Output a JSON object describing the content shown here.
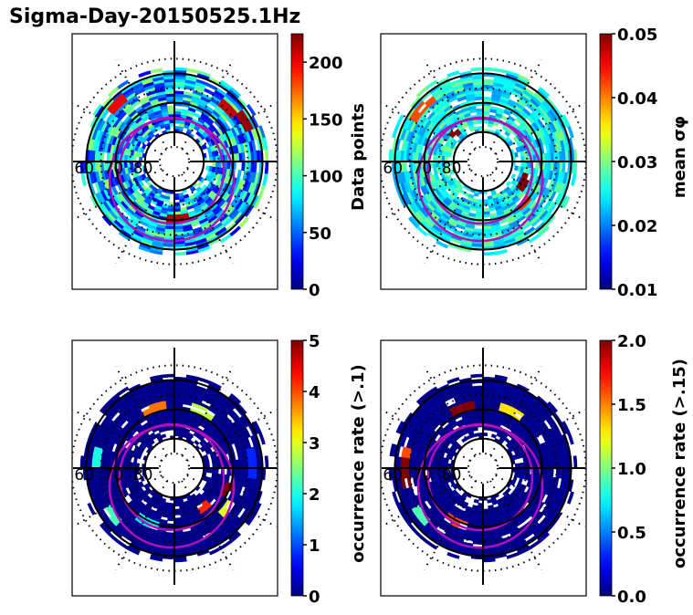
{
  "figure": {
    "title": "Sigma-Day-20150525.1Hz"
  },
  "chart_data": [
    {
      "type": "heatmap",
      "projection": "polar",
      "panel": "top-left",
      "colorbar": {
        "label": "Data points",
        "range": [
          0,
          225
        ],
        "ticks": [
          "0",
          "50",
          "100",
          "150",
          "200"
        ],
        "tick_values": [
          0,
          50,
          100,
          150,
          200
        ],
        "colormap": "jet"
      },
      "radial_labels": [
        "60",
        "70",
        "80"
      ],
      "radial_values": [
        60,
        70,
        80
      ],
      "dominant_range": [
        20,
        120
      ],
      "hotspots": [
        {
          "angle_deg": 130,
          "lat": 62,
          "value": 200
        },
        {
          "angle_deg": 40,
          "lat": 64,
          "value": 210
        },
        {
          "angle_deg": 25,
          "lat": 62,
          "value": 220
        },
        {
          "angle_deg": 270,
          "lat": 70,
          "value": 215
        }
      ]
    },
    {
      "type": "heatmap",
      "projection": "polar",
      "panel": "top-right",
      "colorbar": {
        "label": "mean σφ",
        "range": [
          0.01,
          0.05
        ],
        "ticks": [
          "0.01",
          "0.02",
          "0.03",
          "0.04",
          "0.05"
        ],
        "tick_values": [
          0.01,
          0.02,
          0.03,
          0.04,
          0.05
        ],
        "colormap": "jet"
      },
      "radial_labels": [
        "60",
        "70",
        "80"
      ],
      "radial_values": [
        60,
        70,
        80
      ],
      "dominant_range": [
        0.02,
        0.03
      ],
      "hotspots": [
        {
          "angle_deg": 135,
          "lat": 62,
          "value": 0.042
        },
        {
          "angle_deg": 130,
          "lat": 76,
          "value": 0.05
        },
        {
          "angle_deg": 330,
          "lat": 74,
          "value": 0.05
        },
        {
          "angle_deg": 310,
          "lat": 70,
          "value": 0.043
        }
      ]
    },
    {
      "type": "heatmap",
      "projection": "polar",
      "panel": "bottom-left",
      "colorbar": {
        "label": "occurrence rate (>.1)",
        "range": [
          0,
          5
        ],
        "ticks": [
          "0",
          "1",
          "2",
          "3",
          "4",
          "5"
        ],
        "tick_values": [
          0,
          1,
          2,
          3,
          4,
          5
        ],
        "colormap": "jet"
      },
      "radial_labels": [
        "60",
        "70",
        "80"
      ],
      "radial_values": [
        60,
        70,
        80
      ],
      "dominant_range": [
        0,
        0.2
      ],
      "hotspots": [
        {
          "angle_deg": 105,
          "lat": 68,
          "value": 3.8
        },
        {
          "angle_deg": 60,
          "lat": 68,
          "value": 2.8
        },
        {
          "angle_deg": 170,
          "lat": 63,
          "value": 2.0
        },
        {
          "angle_deg": 215,
          "lat": 63,
          "value": 2.2
        },
        {
          "angle_deg": 240,
          "lat": 69,
          "value": 1.8
        },
        {
          "angle_deg": 335,
          "lat": 70,
          "value": 5.0
        },
        {
          "angle_deg": 320,
          "lat": 67,
          "value": 3.0
        },
        {
          "angle_deg": 305,
          "lat": 73,
          "value": 4.2
        },
        {
          "angle_deg": 0,
          "lat": 63,
          "value": 0.8
        }
      ]
    },
    {
      "type": "heatmap",
      "projection": "polar",
      "panel": "bottom-right",
      "colorbar": {
        "label": "occurrence rate (>.15)",
        "range": [
          0,
          2
        ],
        "ticks": [
          "0.0",
          "0.5",
          "1.0",
          "1.5",
          "2.0"
        ],
        "tick_values": [
          0,
          0.5,
          1.0,
          1.5,
          2.0
        ],
        "colormap": "jet"
      },
      "radial_labels": [
        "60",
        "70",
        "80"
      ],
      "radial_values": [
        60,
        70,
        80
      ],
      "dominant_range": [
        0,
        0.1
      ],
      "hotspots": [
        {
          "angle_deg": 105,
          "lat": 68,
          "value": 2.0
        },
        {
          "angle_deg": 60,
          "lat": 68,
          "value": 1.3
        },
        {
          "angle_deg": 170,
          "lat": 63,
          "value": 1.6
        },
        {
          "angle_deg": 180,
          "lat": 63,
          "value": 2.0
        },
        {
          "angle_deg": 215,
          "lat": 63,
          "value": 0.9
        },
        {
          "angle_deg": 240,
          "lat": 69,
          "value": 1.6
        }
      ]
    }
  ]
}
